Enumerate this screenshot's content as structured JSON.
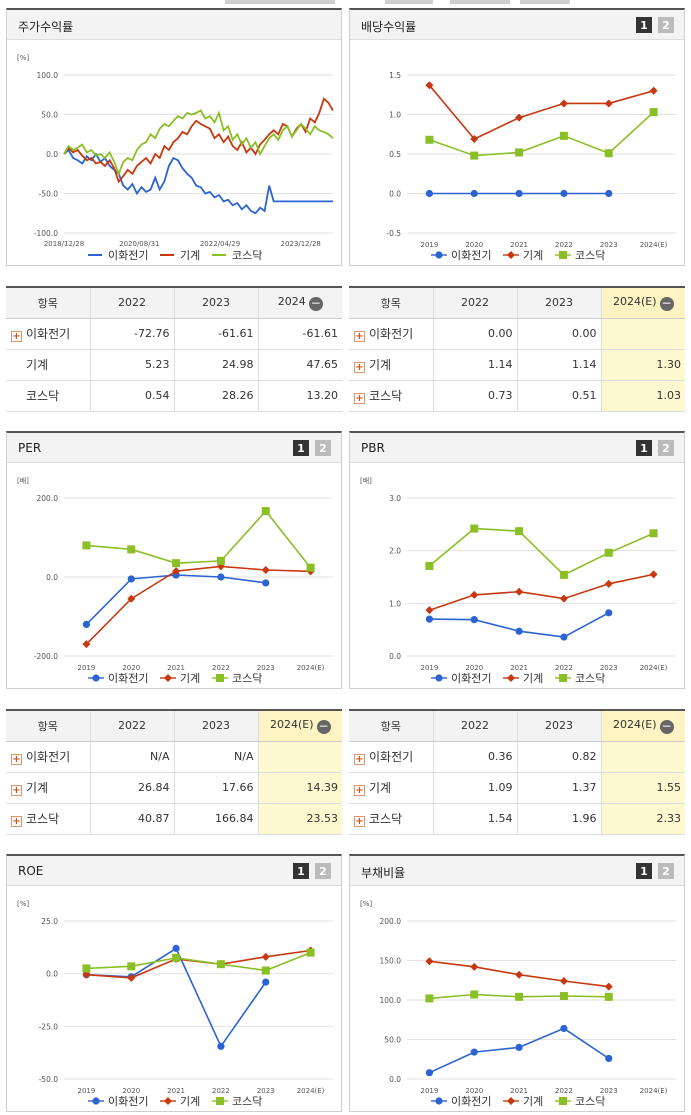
{
  "colors": {
    "s1": "#2b64d2",
    "s2": "#c8380f",
    "s3": "#8abf26"
  },
  "chart_data": [
    {
      "type": "line",
      "title": "주가수익률",
      "unit": "[%]",
      "ylim": [
        -100,
        100
      ],
      "yticks": [
        "100.0",
        "50.0",
        "0.0",
        "-50.0",
        "-100.0"
      ],
      "xticks": [
        "2018/12/28",
        "2020/08/31",
        "2022/04/29",
        "2023/12/28"
      ],
      "series": [
        {
          "name": "이화전기",
          "values": [
            0,
            5,
            -5,
            -8,
            -12,
            -3,
            -8,
            0,
            -10,
            -5,
            -15,
            -20,
            -25,
            -40,
            -45,
            -38,
            -50,
            -42,
            -48,
            -45,
            -30,
            -45,
            -35,
            -15,
            -5,
            -8,
            -18,
            -25,
            -30,
            -40,
            -42,
            -50,
            -48,
            -55,
            -52,
            -60,
            -58,
            -65,
            -62,
            -70,
            -65,
            -72,
            -75,
            -68,
            -72,
            -40,
            -60,
            -60,
            -60,
            -60,
            -60,
            -60,
            -60,
            -60,
            -60,
            -60,
            -60,
            -60,
            -60,
            -60
          ]
        },
        {
          "name": "기계",
          "values": [
            0,
            8,
            2,
            5,
            -2,
            -8,
            -5,
            -12,
            -10,
            -15,
            -8,
            -18,
            -35,
            -28,
            -20,
            -25,
            -15,
            -10,
            -5,
            -12,
            0,
            -5,
            10,
            5,
            15,
            20,
            28,
            25,
            35,
            42,
            38,
            35,
            32,
            20,
            25,
            15,
            22,
            10,
            5,
            15,
            2,
            8,
            0,
            12,
            18,
            25,
            30,
            25,
            38,
            35,
            22,
            32,
            38,
            28,
            45,
            40,
            52,
            70,
            65,
            55
          ]
        },
        {
          "name": "코스닥",
          "values": [
            0,
            10,
            5,
            8,
            12,
            2,
            5,
            -2,
            0,
            -5,
            2,
            -10,
            -25,
            -10,
            -5,
            -8,
            5,
            12,
            15,
            25,
            20,
            32,
            38,
            35,
            42,
            48,
            45,
            52,
            50,
            52,
            55,
            45,
            48,
            40,
            52,
            30,
            35,
            18,
            25,
            12,
            20,
            8,
            15,
            0,
            10,
            20,
            25,
            18,
            30,
            35,
            22,
            30,
            38,
            32,
            25,
            35,
            30,
            28,
            25,
            20
          ]
        }
      ]
    },
    {
      "type": "line",
      "title": "배당수익률",
      "ylim": [
        -0.5,
        1.5
      ],
      "yticks": [
        "1.5",
        "1.0",
        "0.5",
        "0.0",
        "-0.5"
      ],
      "categories": [
        "2019",
        "2020",
        "2021",
        "2022",
        "2023",
        "2024(E)"
      ],
      "series": [
        {
          "name": "이화전기",
          "values": [
            0,
            0,
            0,
            0,
            0,
            null
          ]
        },
        {
          "name": "기계",
          "values": [
            1.37,
            0.69,
            0.96,
            1.14,
            1.14,
            1.3
          ]
        },
        {
          "name": "코스닥",
          "values": [
            0.68,
            0.48,
            0.52,
            0.73,
            0.51,
            1.03
          ]
        }
      ]
    },
    {
      "type": "line",
      "title": "PER",
      "unit": "[배]",
      "ylim": [
        -200,
        200
      ],
      "yticks": [
        "200.0",
        "0.0",
        "-200.0"
      ],
      "categories": [
        "2019",
        "2020",
        "2021",
        "2022",
        "2023",
        "2024(E)"
      ],
      "series": [
        {
          "name": "이화전기",
          "values": [
            -120,
            -5,
            5,
            0,
            -15,
            null
          ]
        },
        {
          "name": "기계",
          "values": [
            -170,
            -55,
            15,
            26.84,
            17.66,
            14.39
          ]
        },
        {
          "name": "코스닥",
          "values": [
            80,
            70,
            35,
            40.87,
            166.84,
            23.53
          ]
        }
      ]
    },
    {
      "type": "line",
      "title": "PBR",
      "unit": "[배]",
      "ylim": [
        0,
        3
      ],
      "yticks": [
        "3.0",
        "2.0",
        "1.0",
        "0.0"
      ],
      "categories": [
        "2019",
        "2020",
        "2021",
        "2022",
        "2023",
        "2024(E)"
      ],
      "series": [
        {
          "name": "이화전기",
          "values": [
            0.7,
            0.69,
            0.47,
            0.36,
            0.82,
            null
          ]
        },
        {
          "name": "기계",
          "values": [
            0.87,
            1.16,
            1.22,
            1.09,
            1.37,
            1.55
          ]
        },
        {
          "name": "코스닥",
          "values": [
            1.71,
            2.42,
            2.37,
            1.54,
            1.96,
            2.33
          ]
        }
      ]
    },
    {
      "type": "line",
      "title": "ROE",
      "unit": "[%]",
      "ylim": [
        -50,
        25
      ],
      "yticks": [
        "25.0",
        "0.0",
        "-25.0",
        "-50.0"
      ],
      "categories": [
        "2019",
        "2020",
        "2021",
        "2022",
        "2023",
        "2024(E)"
      ],
      "series": [
        {
          "name": "이화전기",
          "values": [
            -0.5,
            -1.5,
            12,
            -34.5,
            -4,
            null
          ]
        },
        {
          "name": "기계",
          "values": [
            -0.5,
            -2,
            7,
            4.5,
            8,
            11
          ]
        },
        {
          "name": "코스닥",
          "values": [
            2.5,
            3.5,
            7.5,
            4.5,
            1.5,
            10
          ]
        }
      ]
    },
    {
      "type": "line",
      "title": "부채비율",
      "unit": "[%]",
      "ylim": [
        0,
        200
      ],
      "yticks": [
        "200.0",
        "150.0",
        "100.0",
        "50.0",
        "0.0"
      ],
      "categories": [
        "2019",
        "2020",
        "2021",
        "2022",
        "2023",
        "2024(E)"
      ],
      "series": [
        {
          "name": "이화전기",
          "values": [
            8,
            34,
            40,
            64,
            26,
            null
          ]
        },
        {
          "name": "기계",
          "values": [
            149,
            142,
            132,
            124,
            117,
            null
          ]
        },
        {
          "name": "코스닥",
          "values": [
            102,
            107,
            104,
            105,
            104,
            null
          ]
        }
      ]
    }
  ],
  "tables": {
    "returns": {
      "headers": [
        "항목",
        "2022",
        "2023",
        "2024"
      ],
      "rows": [
        {
          "name": "이화전기",
          "plus": true,
          "vals": [
            "-72.76",
            "-61.61",
            "-61.61"
          ]
        },
        {
          "name": "기계",
          "plus": false,
          "vals": [
            "5.23",
            "24.98",
            "47.65"
          ]
        },
        {
          "name": "코스닥",
          "plus": false,
          "vals": [
            "0.54",
            "28.26",
            "13.20"
          ]
        }
      ]
    },
    "dividend": {
      "headers": [
        "항목",
        "2022",
        "2023",
        "2024(E)"
      ],
      "rows": [
        {
          "name": "이화전기",
          "plus": true,
          "vals": [
            "0.00",
            "0.00",
            ""
          ]
        },
        {
          "name": "기계",
          "plus": true,
          "vals": [
            "1.14",
            "1.14",
            "1.30"
          ]
        },
        {
          "name": "코스닥",
          "plus": true,
          "vals": [
            "0.73",
            "0.51",
            "1.03"
          ]
        }
      ]
    },
    "per": {
      "headers": [
        "항목",
        "2022",
        "2023",
        "2024(E)"
      ],
      "rows": [
        {
          "name": "이화전기",
          "plus": true,
          "vals": [
            "N/A",
            "N/A",
            ""
          ]
        },
        {
          "name": "기계",
          "plus": true,
          "vals": [
            "26.84",
            "17.66",
            "14.39"
          ]
        },
        {
          "name": "코스닥",
          "plus": true,
          "vals": [
            "40.87",
            "166.84",
            "23.53"
          ]
        }
      ]
    },
    "pbr": {
      "headers": [
        "항목",
        "2022",
        "2023",
        "2024(E)"
      ],
      "rows": [
        {
          "name": "이화전기",
          "plus": true,
          "vals": [
            "0.36",
            "0.82",
            ""
          ]
        },
        {
          "name": "기계",
          "plus": true,
          "vals": [
            "1.09",
            "1.37",
            "1.55"
          ]
        },
        {
          "name": "코스닥",
          "plus": true,
          "vals": [
            "1.54",
            "1.96",
            "2.33"
          ]
        }
      ]
    }
  },
  "pager": {
    "p1": "1",
    "p2": "2"
  }
}
